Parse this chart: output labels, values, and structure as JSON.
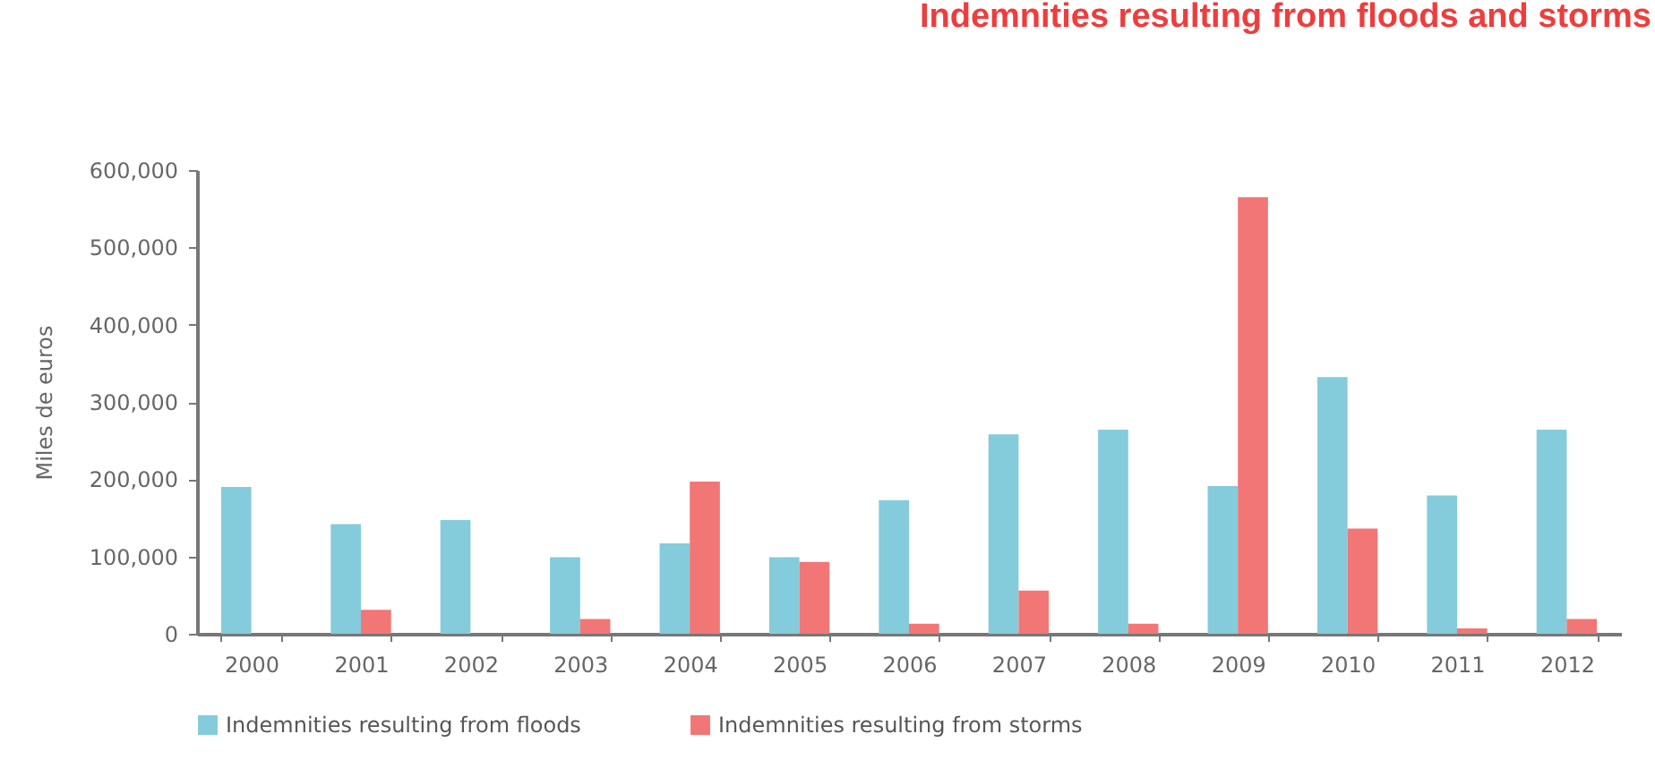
{
  "chart_data": {
    "type": "bar",
    "title": "Indemnities resulting from floods and storms",
    "ylabel": "Miles de euros",
    "categories": [
      "2000",
      "2001",
      "2002",
      "2003",
      "2004",
      "2005",
      "2006",
      "2007",
      "2008",
      "2009",
      "2010",
      "2011",
      "2012"
    ],
    "series": [
      {
        "name": "Indemnities resulting from floods",
        "color": "#84cbdb",
        "values": [
          190000,
          142000,
          147000,
          99000,
          117000,
          99000,
          173000,
          258000,
          264000,
          191000,
          332000,
          179000,
          264000
        ]
      },
      {
        "name": "Indemnities resulting from storms",
        "color": "#f27676",
        "values": [
          0,
          31000,
          0,
          19000,
          197000,
          93000,
          13000,
          56000,
          13000,
          565000,
          136000,
          7000,
          19000
        ]
      }
    ],
    "ylim": [
      0,
      600000
    ],
    "yticks": [
      0,
      {
        "value": 100000,
        "label": "100,000"
      },
      {
        "value": 200000,
        "label": "200,000"
      },
      {
        "value": 300000,
        "label": "300,000"
      },
      {
        "value": 400000,
        "label": "400,000"
      },
      {
        "value": 500000,
        "label": "500,000"
      },
      {
        "value": 600000,
        "label": "600,000"
      }
    ],
    "grid": false,
    "legend": "bottom"
  }
}
